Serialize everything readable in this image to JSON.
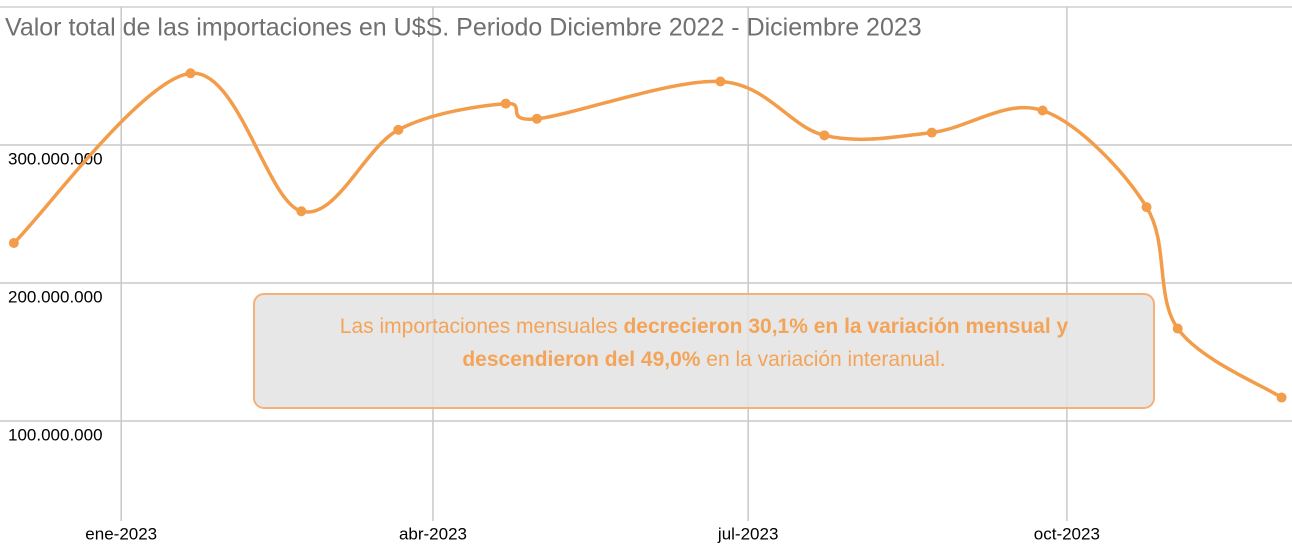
{
  "chart_data": {
    "type": "line",
    "title": "Valor total de las importaciones en U$S. Periodo Diciembre 2022 - Diciembre 2023",
    "annotation": [
      "Las importaciones mensuales ",
      "decrecieron 30,1% en la variación mensual y",
      "descendieron del 49,0%",
      " en la variación interanual."
    ],
    "x": [
      "2022-12-01",
      "2023-01-21",
      "2023-02-22",
      "2023-03-22",
      "2023-04-22",
      "2023-05-01",
      "2023-06-23",
      "2023-07-23",
      "2023-08-23",
      "2023-09-24",
      "2023-10-24",
      "2023-11-02",
      "2023-12-02"
    ],
    "series": [
      {
        "color": "#f39c4a",
        "values": [
          229000000,
          352000000,
          252000000,
          311000000,
          330000000,
          319000000,
          346000000,
          307000000,
          309000000,
          325000000,
          255000000,
          167000000,
          117000000
        ]
      }
    ],
    "xlim": [
      "2022-11-27",
      "2023-12-05"
    ],
    "xticks": [
      {
        "value": "2023-01-01",
        "label": "ene-2023"
      },
      {
        "value": "2023-04-01",
        "label": "abr-2023"
      },
      {
        "value": "2023-07-01",
        "label": "jul-2023"
      },
      {
        "value": "2023-10-01",
        "label": "oct-2023"
      }
    ],
    "ylim": [
      30000000,
      400000000
    ],
    "yticks": [
      {
        "value": 100000000,
        "label": "100.000.000"
      },
      {
        "value": 200000000,
        "label": "200.000.000"
      },
      {
        "value": 300000000,
        "label": "300.000.000"
      }
    ],
    "grid": true
  }
}
